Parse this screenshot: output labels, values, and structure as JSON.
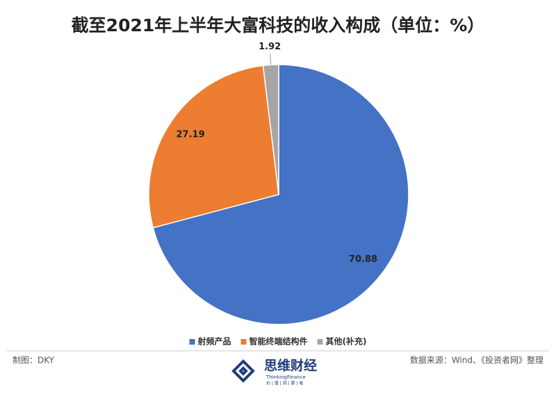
{
  "chart_data": {
    "type": "pie",
    "title": "截至2021年上半年大富科技的收入构成（单位：%）",
    "categories": [
      "射频产品",
      "智能终端结构件",
      "其他(补充)"
    ],
    "series": [
      {
        "name": "收入构成",
        "values": [
          70.88,
          27.19,
          1.92
        ],
        "colors": [
          "#4472c4",
          "#ed7d31",
          "#a5a5a5"
        ]
      }
    ],
    "legend": "bottom"
  },
  "footer": {
    "credit": "制图：DKY",
    "source": "数据来源：Wind、《投资者网》整理"
  },
  "logo": {
    "name": "思维财经",
    "english": "ThinkingFinance",
    "slogan": "价 | 值 | 洞 | 察 | 者"
  }
}
